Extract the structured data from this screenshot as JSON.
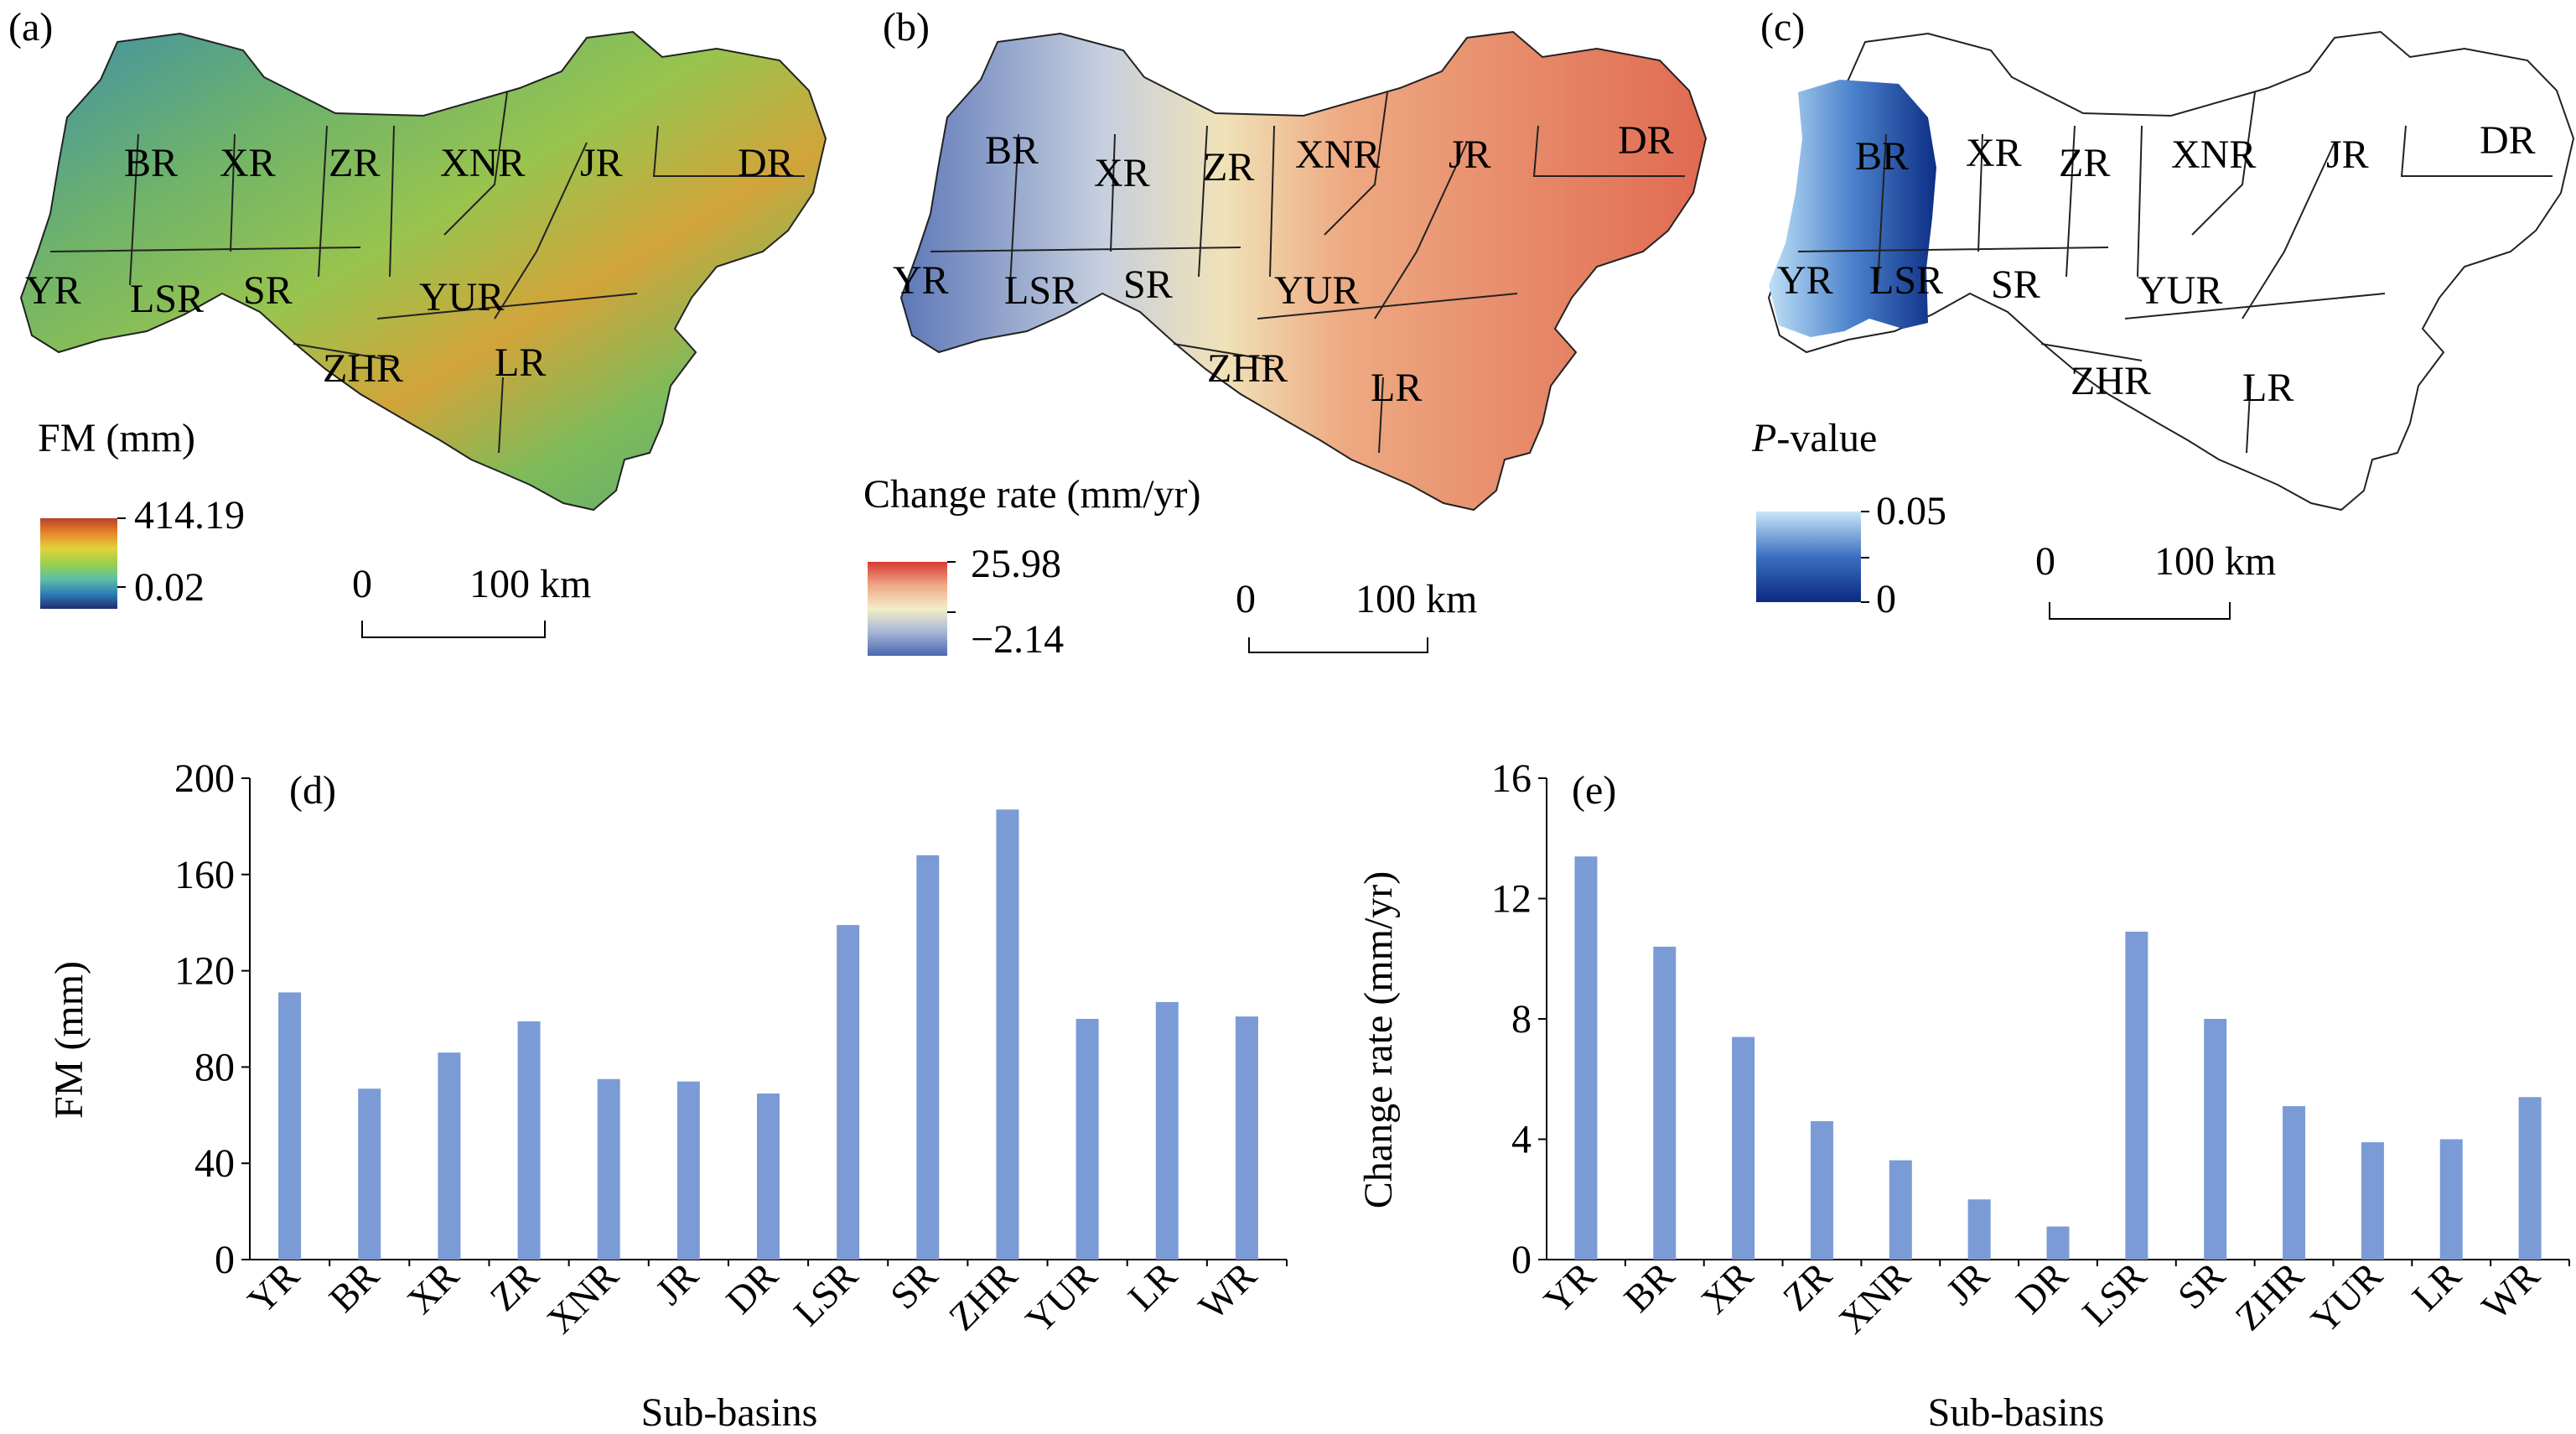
{
  "maps": [
    {
      "panel_label": "(a)",
      "legend_title": "FM (mm)",
      "legend_max": "414.19",
      "legend_min": "0.02",
      "scale_start": "0",
      "scale_end": "100 km",
      "gradient": [
        "#1f2f6e",
        "#2f7fb8",
        "#5fc0a5",
        "#9ad04a",
        "#e0d23a",
        "#e8882a",
        "#b8402a"
      ],
      "labels": [
        "BR",
        "XR",
        "ZR",
        "XNR",
        "JR",
        "DR",
        "YR",
        "LSR",
        "SR",
        "YUR",
        "ZHR",
        "LR"
      ]
    },
    {
      "panel_label": "(b)",
      "legend_title": "Change rate (mm/yr)",
      "legend_max": "25.98",
      "legend_min": "−2.14",
      "scale_start": "0",
      "scale_end": "100 km",
      "gradient": [
        "#4a66ae",
        "#a7b6d6",
        "#f2eec8",
        "#f0a888",
        "#d63a32"
      ],
      "labels": [
        "BR",
        "XR",
        "ZR",
        "XNR",
        "JR",
        "DR",
        "YR",
        "LSR",
        "SR",
        "YUR",
        "ZHR",
        "LR"
      ]
    },
    {
      "panel_label": "(c)",
      "legend_title_italic": "P",
      "legend_title_rest": "-value",
      "legend_max": "0.05",
      "legend_min": "0",
      "scale_start": "0",
      "scale_end": "100 km",
      "gradient": [
        "#0a2a80",
        "#3b6fc0",
        "#c8e6f8"
      ],
      "labels": [
        "BR",
        "XR",
        "ZR",
        "XNR",
        "JR",
        "DR",
        "YR",
        "LSR",
        "SR",
        "YUR",
        "ZHR",
        "LR"
      ]
    }
  ],
  "chart_data": [
    {
      "type": "bar",
      "panel_label": "(d)",
      "categories": [
        "YR",
        "BR",
        "XR",
        "ZR",
        "XNR",
        "JR",
        "DR",
        "LSR",
        "SR",
        "ZHR",
        "YUR",
        "LR",
        "WR"
      ],
      "values": [
        111,
        71,
        86,
        99,
        75,
        74,
        69,
        139,
        168,
        187,
        100,
        107,
        101
      ],
      "xlabel": "Sub-basins",
      "ylabel": "FM (mm)",
      "ylim": [
        0,
        200
      ],
      "yticks": [
        "0",
        "40",
        "80",
        "120",
        "160",
        "200"
      ],
      "bar_color": "#7b9bd6",
      "grid": false
    },
    {
      "type": "bar",
      "panel_label": "(e)",
      "categories": [
        "YR",
        "BR",
        "XR",
        "ZR",
        "XNR",
        "JR",
        "DR",
        "LSR",
        "SR",
        "ZHR",
        "YUR",
        "LR",
        "WR"
      ],
      "values": [
        13.4,
        10.4,
        7.4,
        4.6,
        3.3,
        2.0,
        1.1,
        10.9,
        8.0,
        5.1,
        3.9,
        4.0,
        5.4
      ],
      "xlabel": "Sub-basins",
      "ylabel": "Change rate (mm/yr)",
      "ylim": [
        0,
        16
      ],
      "yticks": [
        "0",
        "4",
        "8",
        "12",
        "16"
      ],
      "bar_color": "#7b9bd6",
      "grid": false
    }
  ]
}
